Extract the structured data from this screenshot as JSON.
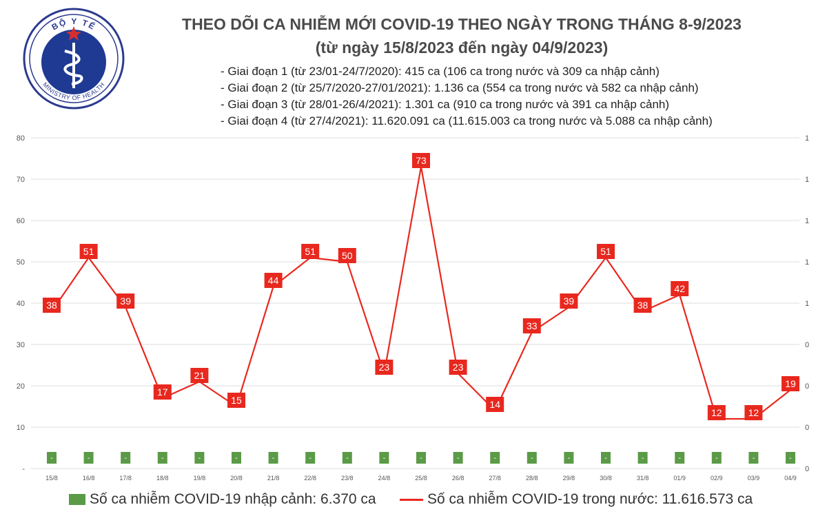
{
  "logo": {
    "top_text": "BỘ Y TẾ",
    "bottom_text": "MINISTRY OF HEALTH"
  },
  "header": {
    "title": "THEO DÕI CA NHIỄM MỚI COVID-19 THEO NGÀY TRONG THÁNG 8-9/2023",
    "subtitle": "(từ ngày 15/8/2023 đến ngày 04/9/2023)"
  },
  "phases": [
    "- Giai đoạn 1 (từ 23/01-24/7/2020): 415 ca (106 ca trong nước và 309 ca nhập cảnh)",
    "- Giai đoạn 2 (từ 25/7/2020-27/01/2021): 1.136 ca (554 ca trong nước và 582 ca nhập cảnh)",
    "- Giai đoạn 3 (từ 28/01-26/4/2021): 1.301 ca (910 ca trong nước và 391 ca nhập cảnh)",
    "- Giai đoạn 4 (từ 27/4/2021): 11.620.091 ca (11.615.003 ca trong nước và 5.088 ca nhập cảnh)"
  ],
  "legend": {
    "imported": "Số ca nhiễm COVID-19 nhập cảnh: 6.370 ca",
    "domestic": "Số ca nhiễm COVID-19 trong nước: 11.616.573 ca"
  },
  "colors": {
    "line": "#e8281e",
    "label_box": "#e8281e",
    "bar": "#5b9a47",
    "grid": "#dddddd",
    "title": "#4a4a4a"
  },
  "chart_data": {
    "type": "line",
    "categories": [
      "15/8",
      "16/8",
      "17/8",
      "18/8",
      "19/8",
      "20/8",
      "21/8",
      "22/8",
      "23/8",
      "24/8",
      "25/8",
      "26/8",
      "27/8",
      "28/8",
      "29/8",
      "30/8",
      "31/8",
      "01/9",
      "02/9",
      "03/9",
      "04/9"
    ],
    "series": [
      {
        "kind": "line",
        "values": [
          38,
          51,
          39,
          17,
          21,
          15,
          44,
          51,
          50,
          23,
          73,
          23,
          14,
          33,
          39,
          51,
          38,
          42,
          12,
          12,
          19
        ]
      },
      {
        "kind": "bar",
        "display_labels": [
          "-",
          "-",
          "-",
          "-",
          "-",
          "-",
          "-",
          "-",
          "-",
          "-",
          "-",
          "-",
          "-",
          "-",
          "-",
          "-",
          "-",
          "-",
          "-",
          "-",
          "-"
        ]
      }
    ],
    "ylim": [
      0,
      80
    ],
    "yticks_left": [
      "-",
      "10",
      "20",
      "30",
      "40",
      "50",
      "60",
      "70",
      "80"
    ],
    "yticks_right": [
      "0",
      "0",
      "0",
      "0",
      "1",
      "1",
      "1",
      "1",
      "1"
    ],
    "grid": true,
    "legend_position": "bottom"
  }
}
